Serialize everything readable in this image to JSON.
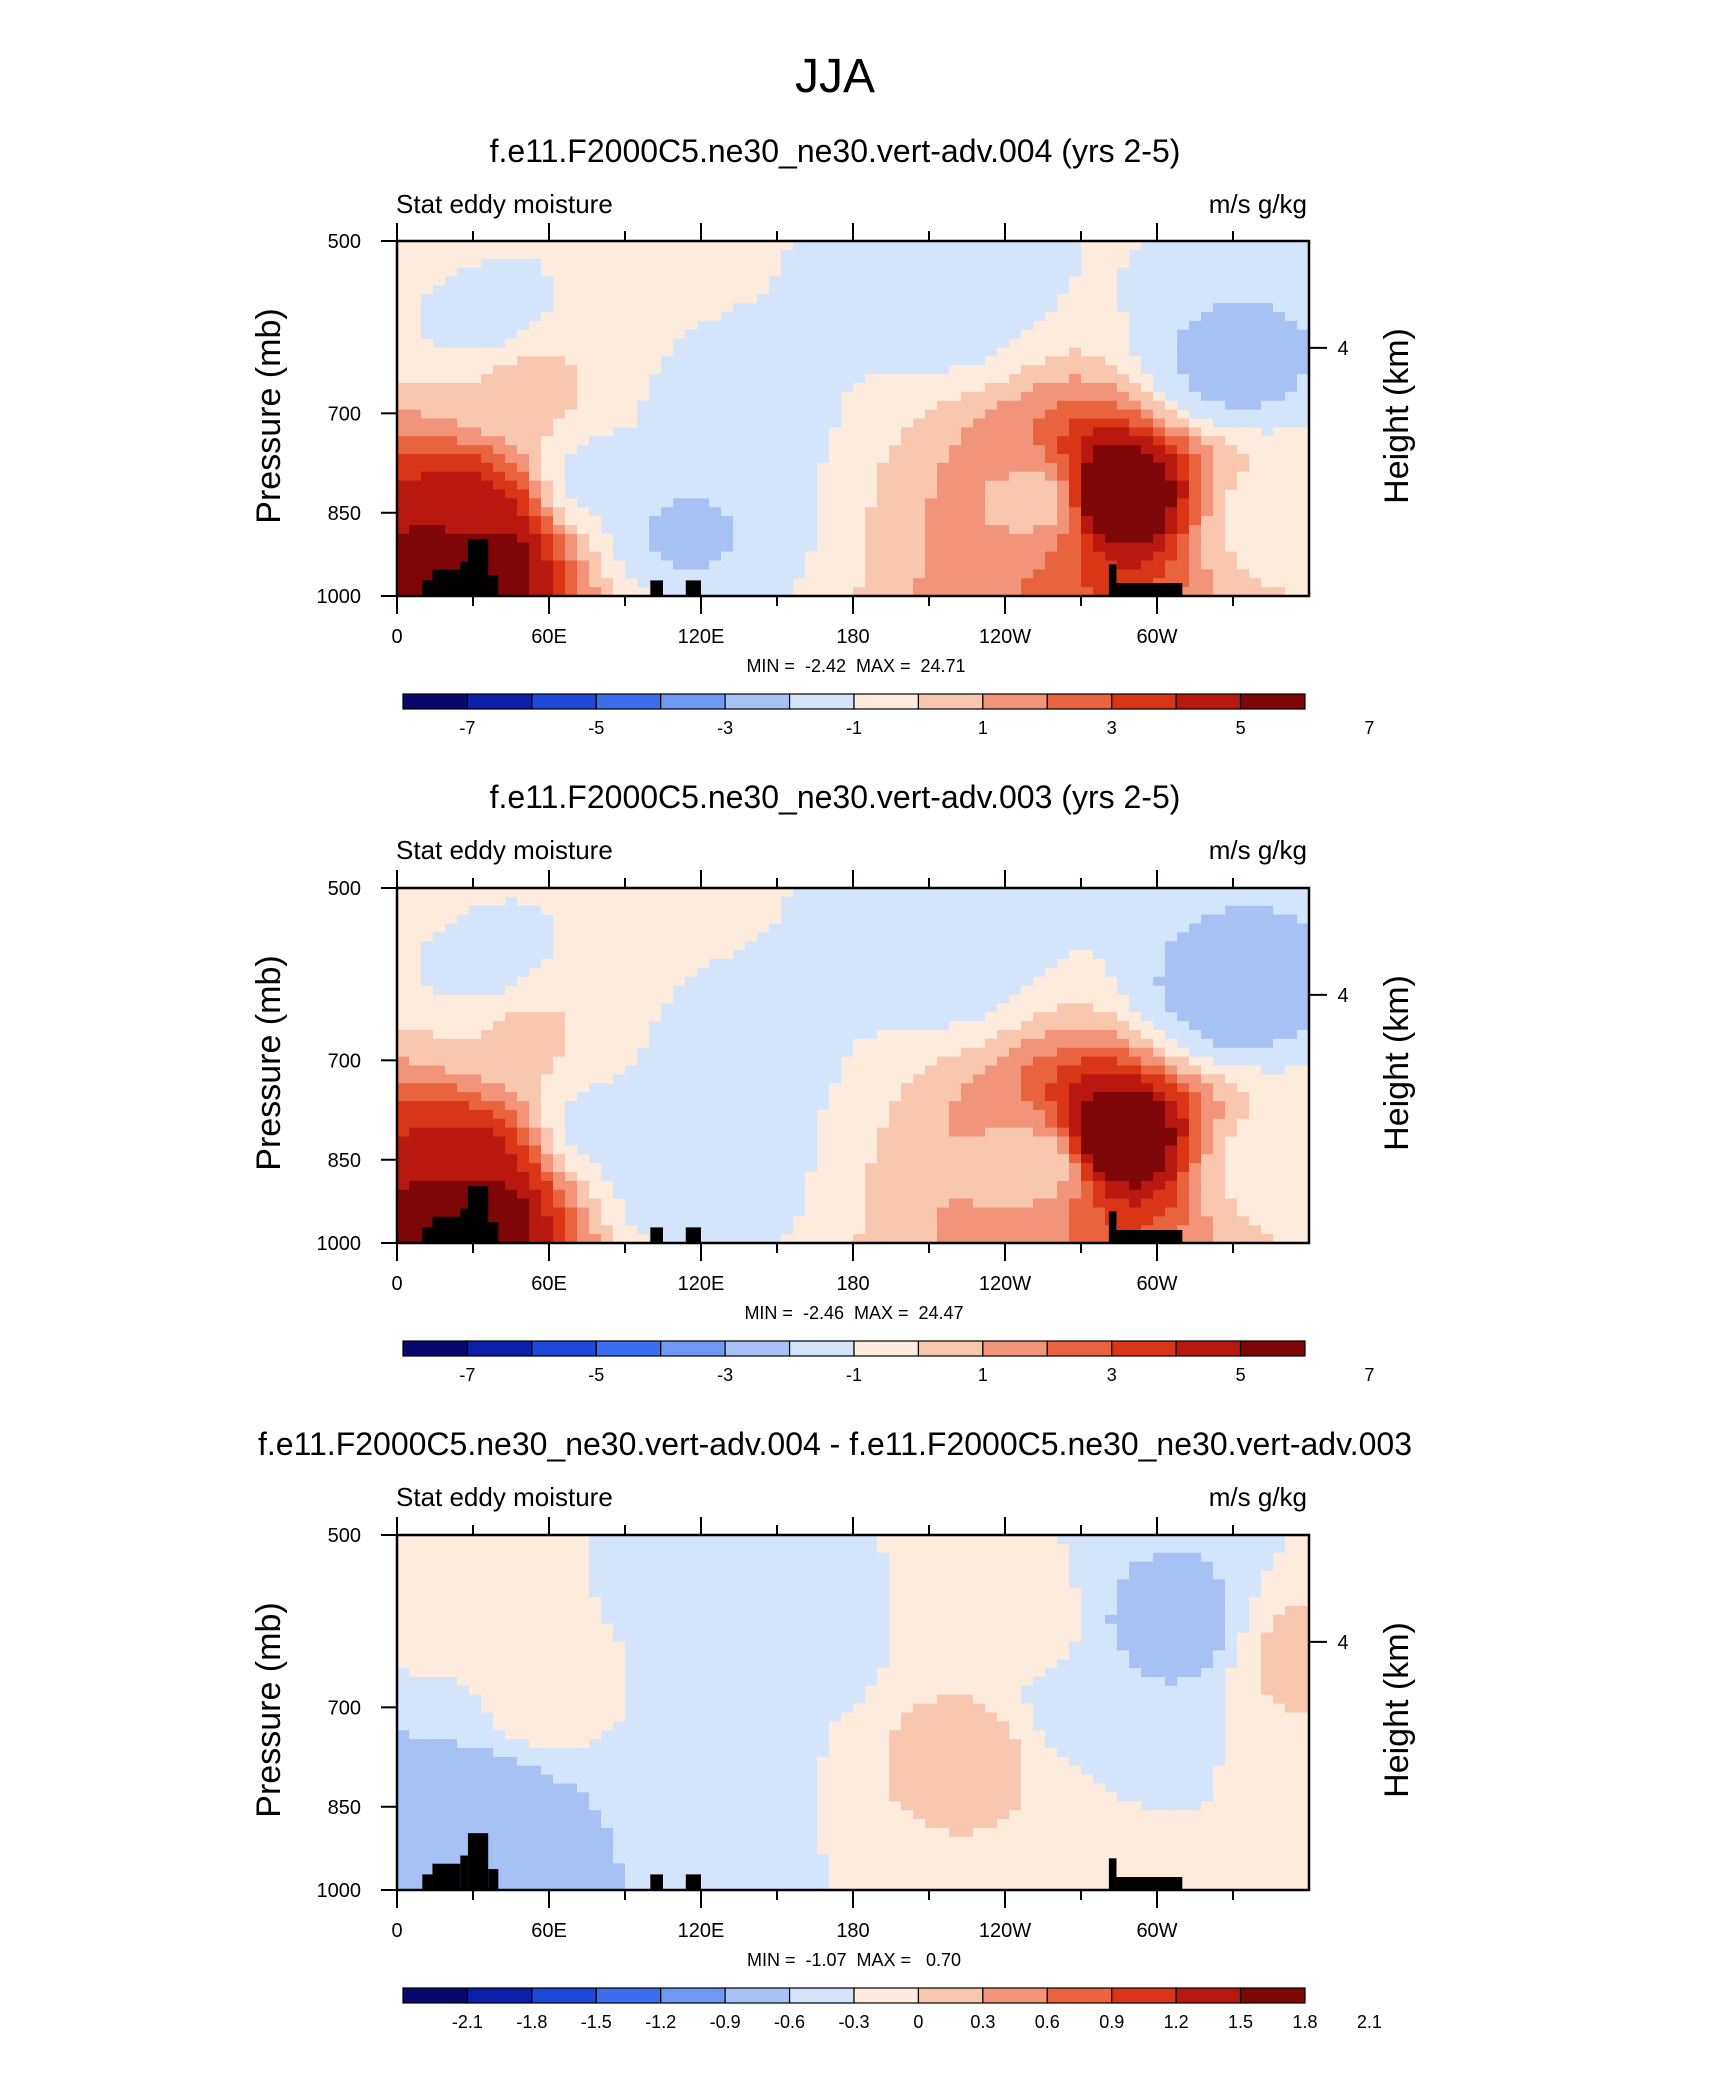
{
  "figure": {
    "title": "JJA"
  },
  "palettes": {
    "full": [
      "#08086e",
      "#0b1fa8",
      "#1d48d8",
      "#3b6ff0",
      "#6e98f2",
      "#a6c2f5",
      "#d4e4fb",
      "#fdebdd",
      "#f9c6ae",
      "#f2947a",
      "#e9633f",
      "#d93617",
      "#b81810",
      "#7e0606"
    ],
    "mask": "#000000"
  },
  "colorbars": {
    "main": {
      "labels": [
        "-7",
        "-5",
        "-3",
        "-1",
        "1",
        "3",
        "5",
        "7"
      ]
    },
    "diff": {
      "labels": [
        "-2.1",
        "-1.8",
        "-1.5",
        "-1.2",
        "-0.9",
        "-0.6",
        "-0.3",
        "0",
        "0.3",
        "0.6",
        "0.9",
        "1.2",
        "1.5",
        "1.8",
        "2.1"
      ]
    }
  },
  "chart_data": [
    {
      "type": "heatmap",
      "title": "f.e11.F2000C5.ne30_ne30.vert-adv.004 (yrs 2-5)",
      "left_label": "Stat eddy moisture",
      "right_label": "m/s g/kg",
      "ylabel": "Pressure (mb)",
      "y2label": "Height (km)",
      "xticks": [
        "0",
        "60E",
        "120E",
        "180",
        "120W",
        "60W"
      ],
      "yticks": [
        "500",
        "700",
        "850",
        "1000"
      ],
      "y2ticks": [
        "4"
      ],
      "ylim": [
        1000,
        500
      ],
      "xlim": [
        0,
        360
      ],
      "minmax": "MIN =  -2.42  MAX =  24.71",
      "contour_levels": [
        -8,
        -7,
        -6,
        -5,
        -4,
        -3,
        -2,
        -1,
        0,
        1,
        2,
        3,
        4,
        5,
        6,
        7,
        8
      ],
      "colorbar": "main",
      "field": [
        {
          "lon": 0,
          "p": 500,
          "value": 0.4
        },
        {
          "lon": 30,
          "p": 850,
          "value": 5.5
        },
        {
          "lon": 30,
          "p": 930,
          "value": 7.5
        },
        {
          "lon": 50,
          "p": 660,
          "value": 1.2
        },
        {
          "lon": 35,
          "p": 580,
          "value": -0.4
        },
        {
          "lon": 80,
          "p": 800,
          "value": -0.5
        },
        {
          "lon": 130,
          "p": 700,
          "value": -0.5
        },
        {
          "lon": 112,
          "p": 880,
          "value": -1.2
        },
        {
          "lon": 215,
          "p": 560,
          "value": -0.6
        },
        {
          "lon": 255,
          "p": 830,
          "value": 1.5
        },
        {
          "lon": 282,
          "p": 820,
          "value": 8.0
        },
        {
          "lon": 330,
          "p": 640,
          "value": -1.3
        },
        {
          "lon": 345,
          "p": 860,
          "value": 0.5
        }
      ],
      "mask": [
        {
          "lon0": 10,
          "lon1": 14,
          "p_top": 970
        },
        {
          "lon0": 14,
          "lon1": 25,
          "p_top": 950
        },
        {
          "lon0": 25,
          "lon1": 28,
          "p_top": 935
        },
        {
          "lon0": 28,
          "lon1": 36,
          "p_top": 895
        },
        {
          "lon0": 36,
          "lon1": 40,
          "p_top": 960
        },
        {
          "lon0": 100,
          "lon1": 105,
          "p_top": 970
        },
        {
          "lon0": 114,
          "lon1": 120,
          "p_top": 970
        },
        {
          "lon0": 281,
          "lon1": 284,
          "p_top": 940
        },
        {
          "lon0": 284,
          "lon1": 310,
          "p_top": 975
        }
      ]
    },
    {
      "type": "heatmap",
      "title": "f.e11.F2000C5.ne30_ne30.vert-adv.003 (yrs 2-5)",
      "left_label": "Stat eddy moisture",
      "right_label": "m/s g/kg",
      "ylabel": "Pressure (mb)",
      "y2label": "Height (km)",
      "xticks": [
        "0",
        "60E",
        "120E",
        "180",
        "120W",
        "60W"
      ],
      "yticks": [
        "500",
        "700",
        "850",
        "1000"
      ],
      "y2ticks": [
        "4"
      ],
      "ylim": [
        1000,
        500
      ],
      "xlim": [
        0,
        360
      ],
      "minmax": "MIN =  -2.46  MAX =  24.47",
      "contour_levels": [
        -8,
        -7,
        -6,
        -5,
        -4,
        -3,
        -2,
        -1,
        0,
        1,
        2,
        3,
        4,
        5,
        6,
        7,
        8
      ],
      "colorbar": "main",
      "field": [
        {
          "lon": 0,
          "p": 500,
          "value": 0.4
        },
        {
          "lon": 30,
          "p": 850,
          "value": 5.3
        },
        {
          "lon": 30,
          "p": 930,
          "value": 7.2
        },
        {
          "lon": 50,
          "p": 660,
          "value": 1.1
        },
        {
          "lon": 35,
          "p": 580,
          "value": -0.4
        },
        {
          "lon": 80,
          "p": 800,
          "value": -0.5
        },
        {
          "lon": 130,
          "p": 700,
          "value": -0.5
        },
        {
          "lon": 112,
          "p": 880,
          "value": -1.0
        },
        {
          "lon": 215,
          "p": 570,
          "value": -0.6
        },
        {
          "lon": 255,
          "p": 850,
          "value": 1.3
        },
        {
          "lon": 282,
          "p": 820,
          "value": 7.8
        },
        {
          "lon": 330,
          "p": 620,
          "value": -1.5
        },
        {
          "lon": 345,
          "p": 860,
          "value": 0.5
        }
      ],
      "mask": [
        {
          "lon0": 10,
          "lon1": 14,
          "p_top": 970
        },
        {
          "lon0": 14,
          "lon1": 25,
          "p_top": 950
        },
        {
          "lon0": 25,
          "lon1": 28,
          "p_top": 935
        },
        {
          "lon0": 28,
          "lon1": 36,
          "p_top": 895
        },
        {
          "lon0": 36,
          "lon1": 40,
          "p_top": 960
        },
        {
          "lon0": 100,
          "lon1": 105,
          "p_top": 970
        },
        {
          "lon0": 114,
          "lon1": 120,
          "p_top": 970
        },
        {
          "lon0": 281,
          "lon1": 284,
          "p_top": 940
        },
        {
          "lon0": 284,
          "lon1": 310,
          "p_top": 975
        }
      ]
    },
    {
      "type": "heatmap",
      "title": "f.e11.F2000C5.ne30_ne30.vert-adv.004 - f.e11.F2000C5.ne30_ne30.vert-adv.003",
      "left_label": "Stat eddy moisture",
      "right_label": "m/s g/kg",
      "ylabel": "Pressure (mb)",
      "y2label": "Height (km)",
      "xticks": [
        "0",
        "60E",
        "120E",
        "180",
        "120W",
        "60W"
      ],
      "yticks": [
        "500",
        "700",
        "850",
        "1000"
      ],
      "y2ticks": [
        "4"
      ],
      "ylim": [
        1000,
        500
      ],
      "xlim": [
        0,
        360
      ],
      "minmax": "MIN =  -1.07  MAX =   0.70",
      "contour_levels": [
        -2.4,
        -2.1,
        -1.8,
        -1.5,
        -1.2,
        -0.9,
        -0.6,
        -0.3,
        0,
        0.3,
        0.6,
        0.9,
        1.2,
        1.5,
        1.8,
        2.1,
        2.4
      ],
      "colorbar": "diff",
      "field": [
        {
          "lon": 10,
          "p": 560,
          "value": 0.1
        },
        {
          "lon": 20,
          "p": 880,
          "value": -0.4
        },
        {
          "lon": 35,
          "p": 860,
          "value": -0.6
        },
        {
          "lon": 60,
          "p": 700,
          "value": 0.1
        },
        {
          "lon": 120,
          "p": 780,
          "value": -0.15
        },
        {
          "lon": 160,
          "p": 620,
          "value": -0.15
        },
        {
          "lon": 225,
          "p": 760,
          "value": 0.45
        },
        {
          "lon": 240,
          "p": 600,
          "value": 0.2
        },
        {
          "lon": 270,
          "p": 700,
          "value": -0.15
        },
        {
          "lon": 308,
          "p": 600,
          "value": -0.5
        },
        {
          "lon": 355,
          "p": 630,
          "value": 0.4
        }
      ],
      "mask": [
        {
          "lon0": 10,
          "lon1": 14,
          "p_top": 970
        },
        {
          "lon0": 14,
          "lon1": 25,
          "p_top": 950
        },
        {
          "lon0": 25,
          "lon1": 28,
          "p_top": 935
        },
        {
          "lon0": 28,
          "lon1": 36,
          "p_top": 895
        },
        {
          "lon0": 36,
          "lon1": 40,
          "p_top": 960
        },
        {
          "lon0": 100,
          "lon1": 105,
          "p_top": 970
        },
        {
          "lon0": 114,
          "lon1": 120,
          "p_top": 970
        },
        {
          "lon0": 281,
          "lon1": 284,
          "p_top": 940
        },
        {
          "lon0": 284,
          "lon1": 310,
          "p_top": 975
        }
      ]
    }
  ]
}
